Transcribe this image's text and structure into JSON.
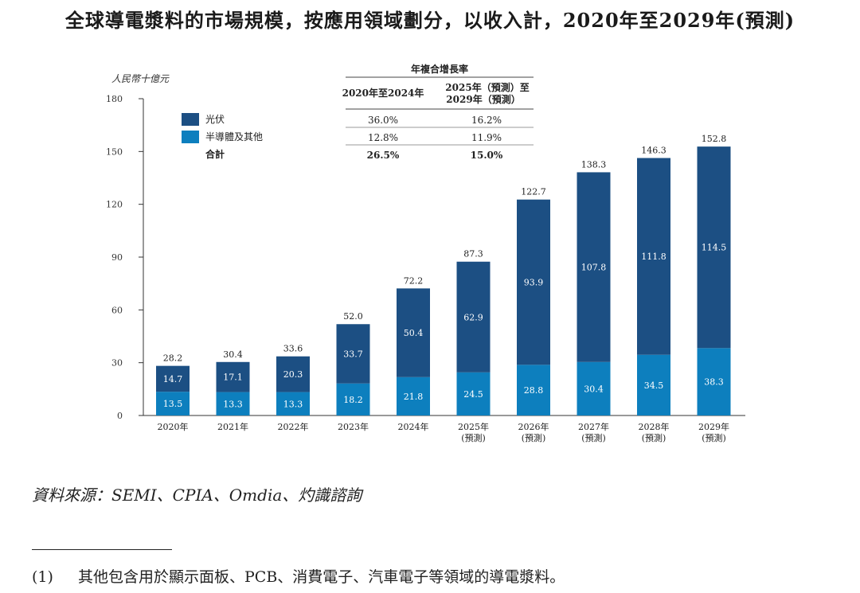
{
  "title": "全球導電漿料的市場規模，按應用領域劃分，以收入計，2020年至2029年(預測)",
  "chart_data": {
    "type": "bar",
    "stacked": true,
    "ylabel": "人民幣十億元",
    "ylim": [
      0,
      180
    ],
    "yticks": [
      0,
      30,
      60,
      90,
      120,
      150,
      180
    ],
    "categories": [
      {
        "year": "2020年",
        "note": ""
      },
      {
        "year": "2021年",
        "note": ""
      },
      {
        "year": "2022年",
        "note": ""
      },
      {
        "year": "2023年",
        "note": ""
      },
      {
        "year": "2024年",
        "note": ""
      },
      {
        "year": "2025年",
        "note": "(預測)"
      },
      {
        "year": "2026年",
        "note": "(預測)"
      },
      {
        "year": "2027年",
        "note": "(預測)"
      },
      {
        "year": "2028年",
        "note": "(預測)"
      },
      {
        "year": "2029年",
        "note": "(預測)"
      }
    ],
    "series": [
      {
        "name": "半導體及其他",
        "color": "#0d7fbe",
        "values": [
          13.5,
          13.3,
          13.3,
          18.2,
          21.8,
          24.5,
          28.8,
          30.4,
          34.5,
          38.3
        ]
      },
      {
        "name": "光伏",
        "color": "#1c4f83",
        "values": [
          14.7,
          17.1,
          20.3,
          33.7,
          50.4,
          62.9,
          93.9,
          107.8,
          111.8,
          114.5
        ]
      }
    ],
    "totals": [
      "28.2",
      "30.4",
      "33.6",
      "52.0",
      "72.2",
      "87.3",
      "122.7",
      "138.3",
      "146.3",
      "152.8"
    ],
    "legend": {
      "pv_label": "光伏",
      "semi_label": "半導體及其他",
      "total_label": "合計"
    },
    "cagr_table": {
      "header": "年複合增長率",
      "col1": "2020年至2024年",
      "col2_line1": "2025年（預測）至",
      "col2_line2": "2029年（預測）",
      "rows": [
        {
          "a": "36.0%",
          "b": "16.2%"
        },
        {
          "a": "12.8%",
          "b": "11.9%"
        },
        {
          "a": "26.5%",
          "b": "15.0%"
        }
      ]
    }
  },
  "source": "資料來源：SEMI、CPIA、Omdia、灼識諮詢",
  "footnote": {
    "number": "(1)",
    "text": "其他包含用於顯示面板、PCB、消費電子、汽車電子等領域的導電漿料。"
  },
  "colors": {
    "pv": "#1c4f83",
    "semi": "#0d7fbe",
    "axis": "#333333"
  }
}
